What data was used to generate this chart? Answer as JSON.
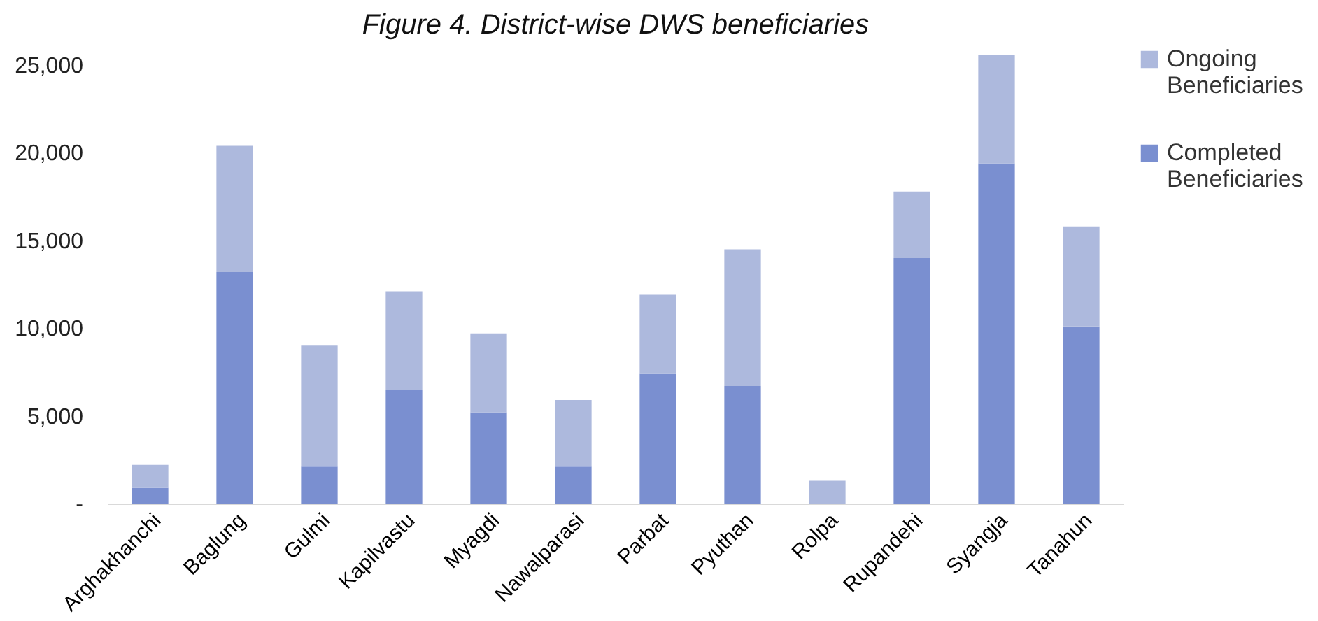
{
  "chart_data": {
    "type": "bar",
    "title": "Figure  4. District-wise DWS beneficiaries",
    "categories": [
      "Arghakhanchi",
      "Baglung",
      "Gulmi",
      "Kapilvastu",
      "Myagdi",
      "Nawalparasi",
      "Parbat",
      "Pyuthan",
      "Rolpa",
      "Rupandehi",
      "Syangja",
      "Tanahun"
    ],
    "series": [
      {
        "name": "Completed Beneficiaries",
        "color": "#7a8fd0",
        "values": [
          900,
          13200,
          2100,
          6500,
          5200,
          2100,
          7400,
          6700,
          0,
          14000,
          19400,
          10100
        ]
      },
      {
        "name": "Ongoing Beneficiaries",
        "color": "#adb9dd",
        "values": [
          1300,
          7200,
          6900,
          5600,
          4500,
          3800,
          4500,
          7800,
          1300,
          3800,
          6200,
          5700
        ]
      }
    ],
    "stacked": true,
    "ylim": [
      0,
      26000
    ],
    "yticks": [
      {
        "value": 0,
        "label": "-"
      },
      {
        "value": 5000,
        "label": "5,000"
      },
      {
        "value": 10000,
        "label": "10,000"
      },
      {
        "value": 15000,
        "label": "15,000"
      },
      {
        "value": 20000,
        "label": "20,000"
      },
      {
        "value": 25000,
        "label": "25,000"
      }
    ],
    "grid": false,
    "legend": "right"
  }
}
